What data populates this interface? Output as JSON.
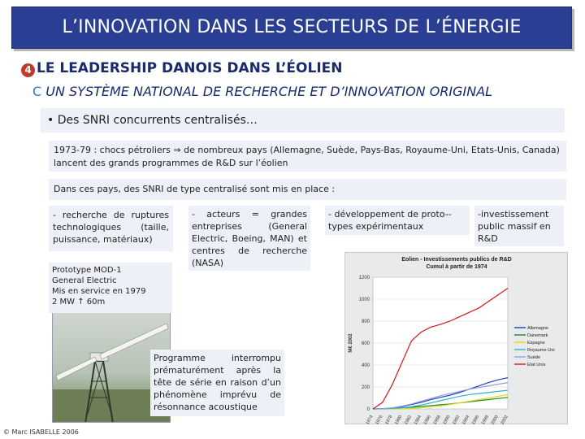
{
  "title": "L’INNOVATION DANS LES SECTEURS DE L’ÉNERGIE",
  "heading1": {
    "bullet": "4",
    "text": "LE LEADERSHIP DANOIS DANS L’ÉOLIEN"
  },
  "heading2": {
    "letter": "C",
    "text": " UN SYSTÈME NATIONAL DE RECHERCHE ET D’INNOVATION ORIGINAL"
  },
  "bullet_box": "• Des SNRI concurrents centralisés…",
  "context_box": "1973-79 : chocs pétroliers ⇒ de nombreux pays (Allemagne, Suède, Pays-Bas, Royaume-Uni, Etats-Unis, Canada) lancent des grands programmes de R&D sur l’éolien",
  "snri_box": "Dans ces pays, des SNRI de type centralisé sont mis en place :",
  "col1_box": "- recherche de ruptures technologiques (taille, puissance, matériaux)",
  "col2_box": "- acteurs = grandes entreprises (General Electric, Boeing, MAN) et centres de recherche (NASA)",
  "col3_box": "- développement de proto--types expérimentaux",
  "col4_box": "-investissement public massif en R&D",
  "prototype_box": {
    "line1": "Prototype MOD-1",
    "line2": "General Electric",
    "line3": "Mis en service en 1979",
    "line4": "2 MW   ↑ 60m"
  },
  "programme_box": "Programme interrompu prématurément après la tête de série en raison d’un phénomène imprévu de résonnance acoustique",
  "copyright": "© Marc ISABELLE 2006",
  "chart_data": {
    "type": "line",
    "title": "Eolien - Investissements publics de R&D",
    "subtitle": "Cumul à partir de 1974",
    "ylabel": "M€ 2002",
    "ylim": [
      0,
      1200
    ],
    "yticks": [
      0,
      200,
      400,
      600,
      800,
      1000,
      1200
    ],
    "x": [
      1974,
      1976,
      1978,
      1980,
      1982,
      1984,
      1986,
      1988,
      1990,
      1992,
      1994,
      1996,
      1998,
      2000,
      2002
    ],
    "series": [
      {
        "name": "Allemagne",
        "color": "#1f3fbf",
        "values": [
          0,
          2,
          8,
          20,
          40,
          60,
          85,
          105,
          125,
          150,
          180,
          210,
          240,
          265,
          285
        ]
      },
      {
        "name": "Danemark",
        "color": "#1a8a2a",
        "values": [
          0,
          2,
          5,
          10,
          15,
          22,
          30,
          38,
          45,
          55,
          65,
          75,
          85,
          95,
          105
        ]
      },
      {
        "name": "Espagne",
        "color": "#e7d21a",
        "values": [
          0,
          0,
          1,
          2,
          5,
          10,
          18,
          28,
          40,
          55,
          70,
          85,
          100,
          115,
          130
        ]
      },
      {
        "name": "Royaume-Uni",
        "color": "#2bb5c9",
        "values": [
          0,
          1,
          4,
          10,
          20,
          35,
          55,
          75,
          95,
          115,
          130,
          140,
          150,
          160,
          170
        ]
      },
      {
        "name": "Suède",
        "color": "#8e9fe0",
        "values": [
          0,
          2,
          10,
          25,
          45,
          70,
          95,
          120,
          140,
          160,
          180,
          195,
          210,
          225,
          240
        ]
      },
      {
        "name": "Etat Unis",
        "color": "#d21a1a",
        "values": [
          0,
          60,
          220,
          420,
          620,
          700,
          745,
          770,
          800,
          840,
          880,
          920,
          980,
          1040,
          1100
        ]
      }
    ]
  }
}
